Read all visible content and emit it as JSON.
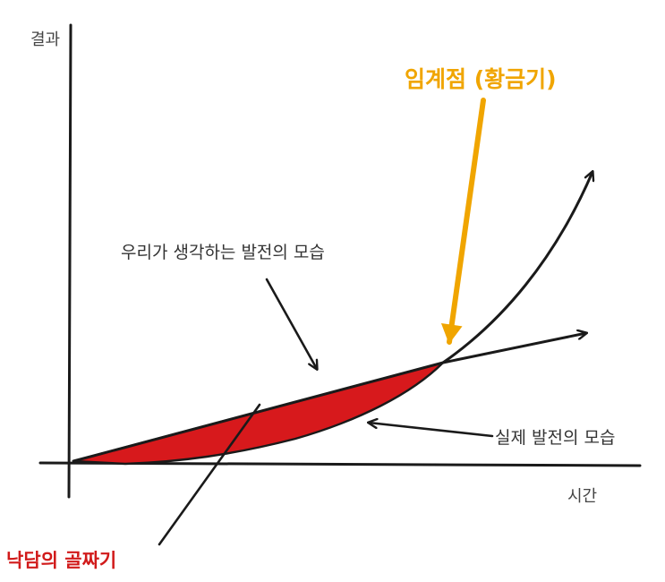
{
  "axes": {
    "y_label": "결과",
    "x_label": "시간"
  },
  "annotations": {
    "critical_point": "임계점 (황금기)",
    "expected_progress": "우리가 생각하는 발전의 모습",
    "actual_progress": "실제 발전의 모습",
    "valley_of_disappointment": "낙담의 골짜기"
  },
  "colors": {
    "ink": "#1a1a1a",
    "critical_point": "#f0a500",
    "valley": "#d11a1a",
    "valley_fill": "#d7191c"
  }
}
